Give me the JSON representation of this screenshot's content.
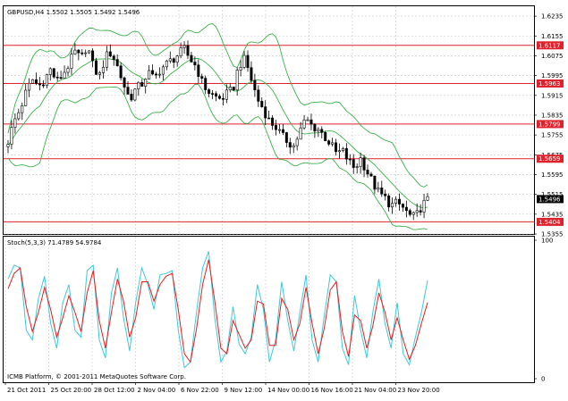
{
  "window": {
    "symbol_header": "GBPUSD,H4  1.5502 1.5505 1.5492 1.5496",
    "osc_header": "Stoch(5,3,3) 71.4789 54.9784",
    "copyright": "ICMB Platform, © 2001-2011 MetaQuotes Software Corp."
  },
  "colors": {
    "background": "#ffffff",
    "grid": "#c8c8c8",
    "candle": "#000000",
    "bands": "#3cb04a",
    "levels": "#e0202a",
    "stoch_main": "#3ec8d8",
    "stoch_signal": "#e02020"
  },
  "chart_data": [
    {
      "type": "candlestick",
      "symbol": "GBPUSD",
      "timeframe": "H4",
      "ylim": [
        1.5355,
        1.6275
      ],
      "price_ticks": [
        "1.6235",
        "1.6155",
        "1.6075",
        "1.5995",
        "1.5915",
        "1.5835",
        "1.5755",
        "1.5675",
        "1.5595",
        "1.5515",
        "1.5435",
        "1.5355"
      ],
      "horizontal_levels": [
        {
          "value": "1.6117"
        },
        {
          "value": "1.5963"
        },
        {
          "value": "1.5799"
        },
        {
          "value": "1.5659"
        },
        {
          "value": "1.5404"
        }
      ],
      "current_price": "1.5496",
      "overlay": "bollinger_bands",
      "x_tick_labels": [
        "21 Oct 2011",
        "25 Oct 20:00",
        "28 Oct 12:00",
        "2 Nov 04:00",
        "6 Nov 22:00",
        "9 Nov 12:00",
        "14 Nov 00:00",
        "16 Nov 16:00",
        "21 Nov 04:00",
        "23 Nov 20:00"
      ],
      "close_path": [
        1.573,
        1.581,
        1.586,
        1.593,
        1.598,
        1.595,
        1.598,
        1.602,
        1.597,
        1.6,
        1.604,
        1.609,
        1.606,
        1.612,
        1.603,
        1.599,
        1.607,
        1.609,
        1.603,
        1.596,
        1.59,
        1.594,
        1.596,
        1.601,
        1.598,
        1.602,
        1.604,
        1.606,
        1.608,
        1.61,
        1.606,
        1.603,
        1.596,
        1.593,
        1.591,
        1.59,
        1.592,
        1.594,
        1.604,
        1.606,
        1.598,
        1.59,
        1.586,
        1.581,
        1.579,
        1.575,
        1.573,
        1.571,
        1.577,
        1.582,
        1.579,
        1.578,
        1.575,
        1.572,
        1.568,
        1.569,
        1.565,
        1.562,
        1.566,
        1.561,
        1.556,
        1.552,
        1.55,
        1.547,
        1.548,
        1.546,
        1.543,
        1.542,
        1.547,
        1.549
      ]
    },
    {
      "type": "line",
      "name": "Stoch(5,3,3)",
      "ylim": [
        0,
        100
      ],
      "y_ticks": [
        "100",
        "0"
      ],
      "series": [
        {
          "name": "main",
          "values": [
            72,
            82,
            80,
            35,
            28,
            58,
            74,
            40,
            22,
            55,
            68,
            35,
            30,
            78,
            82,
            28,
            15,
            62,
            80,
            44,
            20,
            55,
            80,
            68,
            50,
            75,
            76,
            78,
            35,
            8,
            12,
            48,
            80,
            92,
            44,
            12,
            20,
            52,
            25,
            18,
            30,
            68,
            50,
            12,
            28,
            70,
            42,
            20,
            48,
            75,
            28,
            12,
            45,
            75,
            70,
            22,
            10,
            60,
            35,
            15,
            48,
            72,
            40,
            22,
            55,
            18,
            10,
            30,
            48,
            71
          ]
        },
        {
          "name": "signal",
          "values": [
            65,
            76,
            80,
            52,
            34,
            48,
            66,
            50,
            30,
            44,
            60,
            48,
            34,
            62,
            78,
            42,
            22,
            48,
            72,
            56,
            30,
            44,
            70,
            70,
            56,
            68,
            74,
            76,
            50,
            18,
            12,
            36,
            68,
            86,
            56,
            22,
            18,
            42,
            32,
            22,
            28,
            56,
            54,
            24,
            24,
            58,
            50,
            28,
            40,
            66,
            40,
            18,
            36,
            64,
            70,
            34,
            16,
            46,
            42,
            22,
            38,
            62,
            48,
            28,
            44,
            28,
            14,
            24,
            40,
            55
          ]
        }
      ]
    }
  ]
}
